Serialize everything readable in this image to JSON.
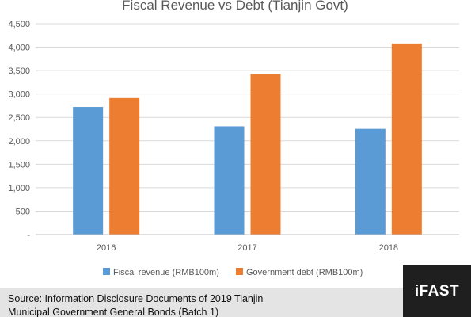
{
  "chart_data": {
    "type": "bar",
    "title": "Fiscal Revenue vs Debt (Tianjin Govt)",
    "categories": [
      "2016",
      "2017",
      "2018"
    ],
    "series": [
      {
        "name": "Fiscal revenue (RMB100m)",
        "values": [
          2723,
          2310,
          2256
        ],
        "color": "#5b9bd5"
      },
      {
        "name": "Government debt (RMB100m)",
        "values": [
          2913,
          3425,
          4079
        ],
        "color": "#ed7d31"
      }
    ],
    "ylim": [
      0,
      4500
    ],
    "yticks": [
      "-",
      "500",
      "1,000",
      "1,500",
      "2,000",
      "2,500",
      "3,000",
      "3,500",
      "4,000",
      "4,500"
    ],
    "grid": true,
    "legend_position": "bottom"
  },
  "footer": {
    "source_text": "Source: Information Disclosure Documents of 2019 Tianjin\nMunicipal Government General Bonds (Batch 1)",
    "logo_text": "iFAST"
  },
  "colors": {
    "gridline": "#d9d9d9",
    "axis_text": "#595959",
    "title": "#595959",
    "footer_bg": "#e4e4e4",
    "logo_bg": "#1f1f1f"
  }
}
